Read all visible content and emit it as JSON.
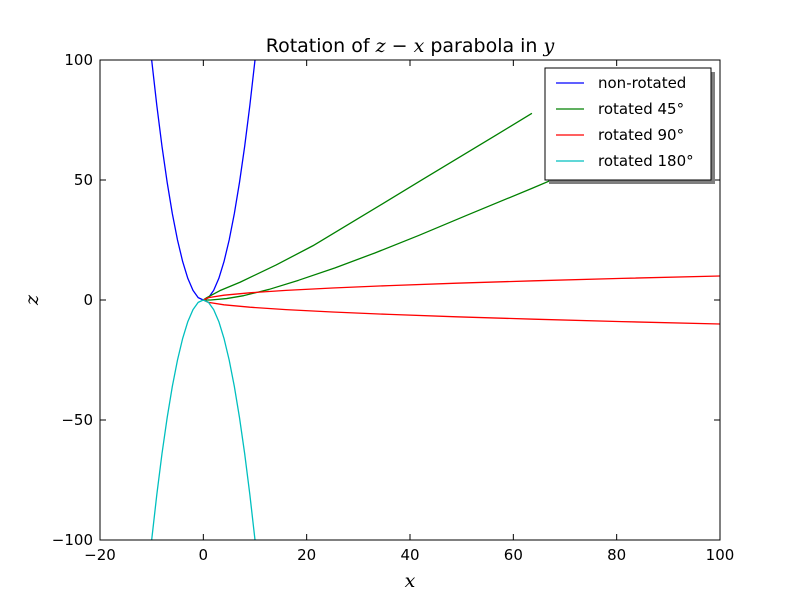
{
  "chart_data": {
    "type": "line",
    "title": "Rotation of z − x parabola in y",
    "title_parts": {
      "prefix": "Rotation of ",
      "math": "z − x",
      "middle": " parabola in ",
      "var": "y"
    },
    "xlabel": "x",
    "ylabel": "z",
    "xlim": [
      -20,
      100
    ],
    "ylim": [
      -100,
      100
    ],
    "xticks": [
      -20,
      0,
      20,
      40,
      60,
      80,
      100
    ],
    "yticks": [
      -100,
      -50,
      0,
      50,
      100
    ],
    "xtick_labels": [
      "−20",
      "0",
      "20",
      "40",
      "60",
      "80",
      "100"
    ],
    "ytick_labels": [
      "−100",
      "−50",
      "0",
      "50",
      "100"
    ],
    "grid": false,
    "legend_position": "top-right",
    "series": [
      {
        "name": "non-rotated",
        "color": "#0000ff",
        "x": [
          -10,
          -9,
          -8,
          -7,
          -6,
          -5,
          -4,
          -3,
          -2,
          -1,
          0,
          1,
          2,
          3,
          4,
          5,
          6,
          7,
          8,
          9,
          10
        ],
        "y": [
          100,
          81,
          64,
          49,
          36,
          25,
          16,
          9,
          4,
          1,
          0,
          1,
          4,
          9,
          16,
          25,
          36,
          49,
          64,
          81,
          100
        ]
      },
      {
        "name": "rotated 45°",
        "color": "#008000",
        "x": [
          63.6,
          56.6,
          49.5,
          42.4,
          35.4,
          28.3,
          21.2,
          14.1,
          7.1,
          3.2,
          0.7,
          0.1,
          0,
          1.4,
          4.5,
          7.8,
          12.7,
          18.4,
          25.5,
          33.2,
          41.7,
          51.1,
          63.6,
          70.7
        ],
        "y": [
          77.8,
          68.6,
          59.4,
          50.2,
          41.0,
          31.8,
          22.6,
          14.6,
          7.4,
          3.9,
          1.0,
          0.2,
          0,
          0,
          0.6,
          1.8,
          4.4,
          8.2,
          13.4,
          19.6,
          26.9,
          35.4,
          46.5,
          53.0
        ]
      },
      {
        "name": "rotated 90°",
        "color": "#ff0000",
        "x": [
          100,
          81,
          64,
          49,
          36,
          25,
          16,
          9,
          4,
          1,
          0,
          1,
          4,
          9,
          16,
          25,
          36,
          49,
          64,
          81,
          100
        ],
        "y": [
          10,
          9,
          8,
          7,
          6,
          5,
          4,
          3,
          2,
          1,
          0,
          -1,
          -2,
          -3,
          -4,
          -5,
          -6,
          -7,
          -8,
          -9,
          -10
        ]
      },
      {
        "name": "rotated 180°",
        "color": "#00bfbf",
        "x": [
          -10,
          -9,
          -8,
          -7,
          -6,
          -5,
          -4,
          -3,
          -2,
          -1,
          0,
          1,
          2,
          3,
          4,
          5,
          6,
          7,
          8,
          9,
          10
        ],
        "y": [
          -100,
          -81,
          -64,
          -49,
          -36,
          -25,
          -16,
          -9,
          -4,
          -1,
          0,
          -1,
          -4,
          -9,
          -16,
          -25,
          -36,
          -49,
          -64,
          -81,
          -100
        ]
      }
    ]
  }
}
